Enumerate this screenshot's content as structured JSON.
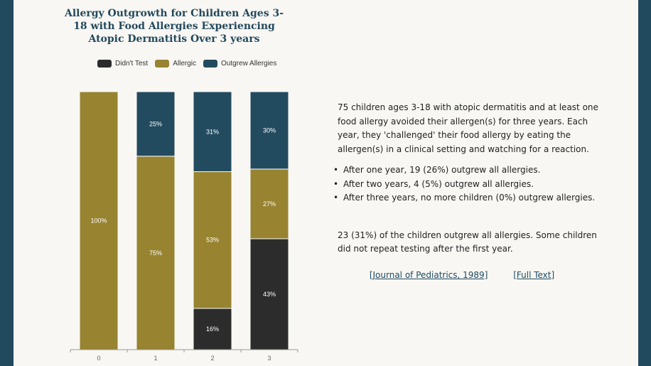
{
  "colors": {
    "didnt_test": "#2c2c2c",
    "allergic": "#978330",
    "outgrew": "#234b60",
    "brand": "#224a5f"
  },
  "chart_data": {
    "type": "bar",
    "stacked": true,
    "title": "Allergy Outgrowth for Children Ages 3-18 with Food Allergies Experiencing Atopic Dermatitis Over 3 years",
    "categories": [
      "0",
      "1",
      "2",
      "3"
    ],
    "series": [
      {
        "name": "Didn't Test",
        "color": "#2c2c2c",
        "values": [
          0,
          0,
          16,
          43
        ]
      },
      {
        "name": "Allergic",
        "color": "#978330",
        "values": [
          100,
          75,
          53,
          27
        ]
      },
      {
        "name": "Outgrew Allergies",
        "color": "#234b60",
        "values": [
          0,
          25,
          31,
          30
        ]
      }
    ],
    "ylim": [
      0,
      100
    ],
    "value_suffix": "%",
    "grid": false,
    "legend_position": "top"
  },
  "description": {
    "intro": "75 children ages 3-18 with atopic dermatitis and at least one food allergy avoided their allergen(s) for three years. Each year, they 'challenged' their food allergy by eating the allergen(s) in a clinical setting and watching for a reaction.",
    "bullets": [
      "After one year, 19 (26%) outgrew all allergies.",
      "After two years, 4 (5%) outgrew all allergies.",
      "After three years, no more children (0%) outgrew allergies."
    ],
    "summary": "23 (31%) of the children outgrew all allergies. Some children did not repeat testing after the first year."
  },
  "links": {
    "journal": "[Journal of Pediatrics, 1989]",
    "full_text": "[Full Text]"
  }
}
